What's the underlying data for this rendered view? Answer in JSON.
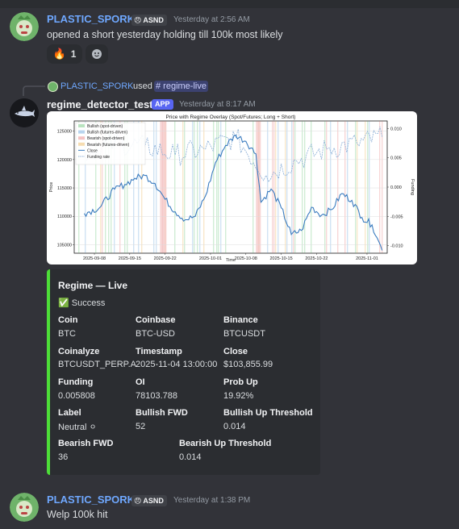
{
  "messages": [
    {
      "username": "PLASTIC_SPORK",
      "tag": "ASND",
      "timestamp": "Yesterday at 2:56 AM",
      "text": "opened a short yesterday holding till 100k most likely",
      "reactions": [
        {
          "emoji": "🔥",
          "count": "1"
        },
        {
          "emoji": "add-reaction-icon",
          "count": ""
        }
      ]
    },
    {
      "reply": {
        "username": "PLASTIC_SPORK",
        "action": "used",
        "command": "# regime-live"
      },
      "username": "regime_detector_test",
      "app_badge": "APP",
      "timestamp": "Yesterday at 8:17 AM"
    },
    {
      "username": "PLASTIC_SPORK",
      "tag": "ASND",
      "timestamp": "Yesterday at 1:38 PM",
      "text": "Welp 100k hit"
    }
  ],
  "embed": {
    "accent_color": "#4dde38",
    "title": "Regime — Live",
    "status": "✅ Success",
    "fields": [
      {
        "name": "Coin",
        "value": "BTC"
      },
      {
        "name": "Coinbase",
        "value": "BTC-USD"
      },
      {
        "name": "Binance",
        "value": "BTCUSDT"
      },
      {
        "name": "Coinalyze",
        "value": "BTCUSDT_PERP.A"
      },
      {
        "name": "Timestamp",
        "value": "2025-11-04 13:00:00"
      },
      {
        "name": "Close",
        "value": "$103,855.99"
      },
      {
        "name": "Funding",
        "value": "0.005808"
      },
      {
        "name": "OI",
        "value": "78103.788"
      },
      {
        "name": "Prob Up",
        "value": "19.92%"
      },
      {
        "name": "Label",
        "value": "Neutral ⚪"
      },
      {
        "name": "Bullish FWD",
        "value": "52"
      },
      {
        "name": "Bullish Up Threshold",
        "value": "0.014"
      },
      {
        "name": "Bearish FWD",
        "value": "36"
      },
      {
        "name": "Bearish Up Threshold",
        "value": "0.014"
      }
    ]
  },
  "chart_data": {
    "type": "line",
    "title": "Price with Regime Overlay (Spot/Futures; Long + Short)",
    "xlabel": "Time",
    "ylabel": "Price",
    "y2label": "Funding",
    "x_ticks": [
      "2025-09-08",
      "2025-09-15",
      "2025-09-22",
      "2025-10-01",
      "2025-10-08",
      "2025-10-15",
      "2025-10-22",
      "2025-11-01"
    ],
    "y_ticks": [
      "105000",
      "110000",
      "115000",
      "120000",
      "125000"
    ],
    "y2_ticks": [
      "-0.010",
      "-0.005",
      "0.000",
      "0.005",
      "0.010"
    ],
    "ylim": [
      103500,
      126800
    ],
    "y2lim": [
      -0.0113,
      0.0113
    ],
    "legend": [
      "Bullish (spot-driven)",
      "Bullish (futures-driven)",
      "Bearish (spot-driven)",
      "Bearish (futures-driven)",
      "Close",
      "Funding rate"
    ],
    "legend_position": "top-left",
    "colors": {
      "bullish_spot": "#b9e4c0",
      "bullish_futures": "#b8d4ee",
      "bearish_spot": "#f4c2c2",
      "bearish_futures": "#f6dcb0",
      "close": "#3a7bbf",
      "funding": "#8aaed6"
    },
    "close": {
      "x": [
        "2025-09-06",
        "2025-09-09",
        "2025-09-12",
        "2025-09-14",
        "2025-09-16",
        "2025-09-18",
        "2025-09-20",
        "2025-09-22",
        "2025-09-24",
        "2025-09-26",
        "2025-09-28",
        "2025-09-30",
        "2025-10-02",
        "2025-10-04",
        "2025-10-06",
        "2025-10-08",
        "2025-10-10",
        "2025-10-11",
        "2025-10-13",
        "2025-10-15",
        "2025-10-17",
        "2025-10-19",
        "2025-10-21",
        "2025-10-23",
        "2025-10-25",
        "2025-10-27",
        "2025-10-29",
        "2025-10-31",
        "2025-11-02",
        "2025-11-03",
        "2025-11-04"
      ],
      "values": [
        110500,
        111500,
        114800,
        115600,
        116700,
        117200,
        115800,
        113000,
        110800,
        109400,
        110000,
        113600,
        119500,
        122500,
        124300,
        123200,
        121000,
        112500,
        114800,
        111500,
        106800,
        107500,
        111600,
        110200,
        111200,
        114000,
        112800,
        109800,
        108500,
        106200,
        104000
      ]
    },
    "funding": {
      "x": [
        "2025-09-06",
        "2025-09-12",
        "2025-09-18",
        "2025-09-24",
        "2025-09-30",
        "2025-10-06",
        "2025-10-12",
        "2025-10-18",
        "2025-10-24",
        "2025-10-30",
        "2025-11-04"
      ],
      "values": [
        0.006,
        0.0075,
        0.007,
        0.0055,
        0.0065,
        0.0085,
        0.002,
        0.0045,
        0.0065,
        0.0075,
        0.0085
      ]
    }
  }
}
